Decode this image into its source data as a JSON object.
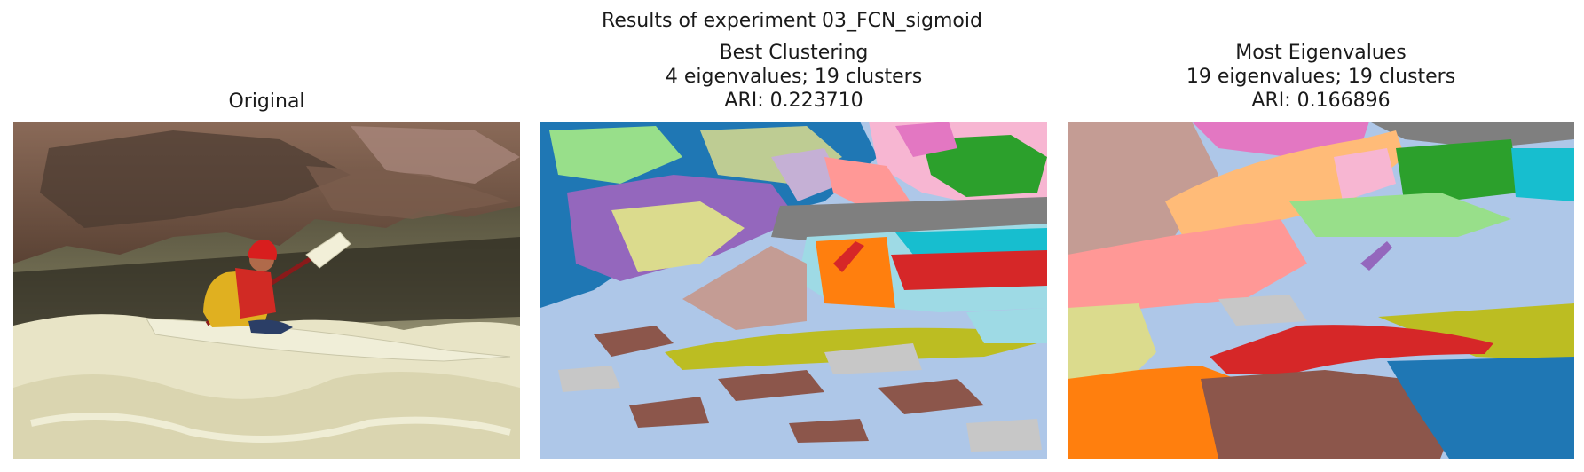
{
  "figure": {
    "suptitle": "Results of experiment 03_FCN_sigmoid"
  },
  "panels": [
    {
      "title_lines": [
        "Original"
      ],
      "image": "photo of a kayaker in a red life vest and yellow jacket paddling through whitewater rapids in front of large brown rocks"
    },
    {
      "title_lines": [
        "Best Clustering",
        "4 eigenvalues; 19 clusters",
        "ARI: 0.223710"
      ],
      "image": "segmentation map in 19 cluster colors of the kayak photo"
    },
    {
      "title_lines": [
        "Most Eigenvalues",
        "19 eigenvalues; 19 clusters",
        "ARI: 0.166896"
      ],
      "image": "segmentation map in 19 cluster colors of the kayak photo with larger smoother regions"
    }
  ],
  "cluster_palette": [
    "#1f77b4",
    "#aec7e8",
    "#ff7f0e",
    "#ffbb78",
    "#2ca02c",
    "#98df8a",
    "#d62728",
    "#ff9896",
    "#9467bd",
    "#c5b0d5",
    "#8c564b",
    "#c49c94",
    "#e377c2",
    "#f7b6d2",
    "#7f7f7f",
    "#c7c7c7",
    "#bcbd22",
    "#dbdb8d",
    "#17becf",
    "#9edae5"
  ]
}
